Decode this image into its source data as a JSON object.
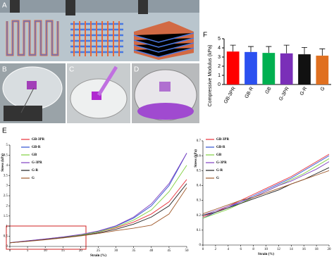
{
  "panel_labels": [
    "A",
    "B",
    "C",
    "D",
    "E",
    "F"
  ],
  "chart_data": [
    {
      "type": "bar",
      "y_label": "Compressive Modulus (kPa)",
      "categories": [
        "GB-3PR",
        "GB-R",
        "GB",
        "G-3PR",
        "G-R",
        "G"
      ],
      "values": [
        3.6,
        3.55,
        3.45,
        3.4,
        3.3,
        3.15
      ],
      "errors": [
        0.7,
        0.6,
        0.7,
        0.9,
        0.75,
        0.75
      ],
      "colors": [
        "#ff0000",
        "#2b50f0",
        "#00b050",
        "#7a2fb8",
        "#111111",
        "#e07020"
      ],
      "ylim": [
        0,
        5
      ],
      "yticks": [
        0,
        1,
        2,
        3,
        4,
        5
      ]
    },
    {
      "type": "line",
      "x_label": "Strain (%)",
      "y_label": "Stress (kPa)",
      "x": [
        0,
        5,
        10,
        15,
        20,
        25,
        30,
        35,
        40,
        45,
        50
      ],
      "xlim": [
        0,
        50
      ],
      "xticks": [
        0,
        5,
        10,
        15,
        20,
        25,
        30,
        35,
        40,
        45,
        50
      ],
      "ylim": [
        0,
        5
      ],
      "yticks": [
        0,
        0.5,
        1,
        1.5,
        2,
        2.5,
        3,
        3.5,
        4,
        4.5,
        5
      ],
      "series": [
        {
          "name": "GB-3PR",
          "color": "#e8303a",
          "values": [
            0.18,
            0.27,
            0.36,
            0.46,
            0.57,
            0.72,
            0.92,
            1.2,
            1.6,
            2.2,
            3.3
          ]
        },
        {
          "name": "GB-R",
          "color": "#3050d0",
          "values": [
            0.18,
            0.27,
            0.36,
            0.46,
            0.58,
            0.75,
            1.0,
            1.4,
            2.0,
            3.0,
            4.6
          ]
        },
        {
          "name": "GB",
          "color": "#80d040",
          "values": [
            0.18,
            0.26,
            0.35,
            0.45,
            0.56,
            0.72,
            0.95,
            1.3,
            1.8,
            2.7,
            4.0
          ]
        },
        {
          "name": "G-3PR",
          "color": "#8040c0",
          "values": [
            0.19,
            0.28,
            0.37,
            0.47,
            0.59,
            0.76,
            1.02,
            1.45,
            2.1,
            3.1,
            4.6
          ]
        },
        {
          "name": "G-R",
          "color": "#202020",
          "values": [
            0.18,
            0.26,
            0.34,
            0.43,
            0.53,
            0.67,
            0.85,
            1.1,
            1.45,
            2.0,
            3.1
          ]
        },
        {
          "name": "G",
          "color": "#a05a2c",
          "values": [
            0.18,
            0.25,
            0.33,
            0.42,
            0.52,
            0.64,
            0.78,
            0.9,
            1.05,
            1.6,
            2.9
          ]
        }
      ]
    },
    {
      "type": "line",
      "x_label": "Strain (%)",
      "y_label": "Stress (kPa)",
      "x": [
        0,
        2,
        4,
        6,
        8,
        10,
        12,
        14,
        16,
        18,
        20
      ],
      "xlim": [
        0,
        20
      ],
      "xticks": [
        0,
        2,
        4,
        6,
        8,
        10,
        12,
        14,
        16,
        18,
        20
      ],
      "ylim": [
        0,
        0.7
      ],
      "yticks": [
        0,
        0.1,
        0.2,
        0.3,
        0.4,
        0.5,
        0.6,
        0.7
      ],
      "series": [
        {
          "name": "GB-3PR",
          "color": "#e8303a",
          "values": [
            0.19,
            0.22,
            0.26,
            0.3,
            0.34,
            0.38,
            0.42,
            0.46,
            0.51,
            0.56,
            0.61
          ]
        },
        {
          "name": "GB-R",
          "color": "#3050d0",
          "values": [
            0.18,
            0.22,
            0.25,
            0.29,
            0.33,
            0.37,
            0.41,
            0.45,
            0.5,
            0.55,
            0.6
          ]
        },
        {
          "name": "GB",
          "color": "#80d040",
          "values": [
            0.18,
            0.21,
            0.24,
            0.28,
            0.32,
            0.36,
            0.4,
            0.44,
            0.48,
            0.53,
            0.58
          ]
        },
        {
          "name": "G-3PR",
          "color": "#8040c0",
          "values": [
            0.2,
            0.23,
            0.26,
            0.29,
            0.32,
            0.36,
            0.4,
            0.43,
            0.47,
            0.51,
            0.56
          ]
        },
        {
          "name": "G-R",
          "color": "#202020",
          "values": [
            0.2,
            0.22,
            0.25,
            0.28,
            0.31,
            0.34,
            0.37,
            0.41,
            0.44,
            0.48,
            0.52
          ]
        },
        {
          "name": "G",
          "color": "#a05a2c",
          "values": [
            0.21,
            0.24,
            0.27,
            0.3,
            0.32,
            0.35,
            0.38,
            0.41,
            0.44,
            0.47,
            0.5
          ]
        }
      ]
    }
  ]
}
